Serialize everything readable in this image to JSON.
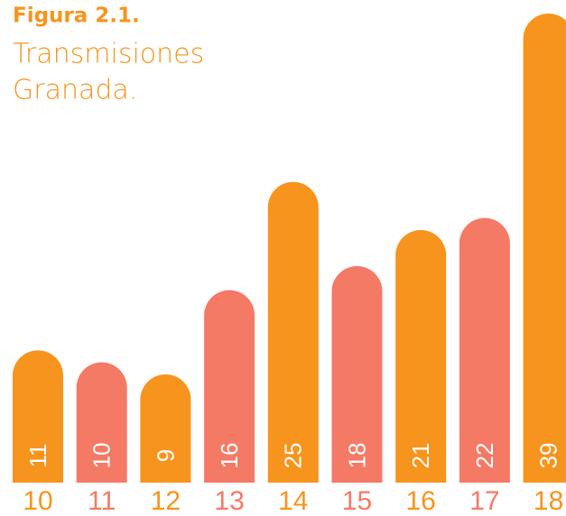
{
  "chart_data": {
    "type": "bar",
    "title": "Figura 2.1.",
    "subtitle_lines": [
      "Transmisiones",
      "Granada."
    ],
    "categories": [
      "10",
      "11",
      "12",
      "13",
      "14",
      "15",
      "16",
      "17",
      "18"
    ],
    "values": [
      11,
      10,
      9,
      16,
      25,
      18,
      21,
      22,
      39
    ],
    "colors": [
      "#f7941d",
      "#f47a66",
      "#f7941d",
      "#f47a66",
      "#f7941d",
      "#f47a66",
      "#f7941d",
      "#f47a66",
      "#f7941d"
    ]
  }
}
